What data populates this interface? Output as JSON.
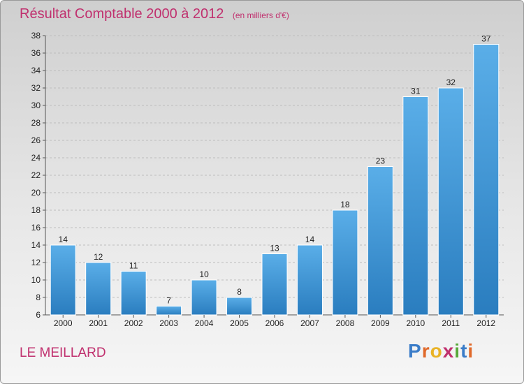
{
  "header": {
    "title": "Résultat Comptable 2000 à 2012",
    "unit": "(en milliers d'€)"
  },
  "footer": {
    "town": "LE MEILLARD",
    "logo": [
      "P",
      "r",
      "o",
      "x",
      "i",
      "t",
      "i"
    ]
  },
  "colors": {
    "title": "#c0306e",
    "bar_top": "#5aaee8",
    "bar_bottom": "#2a7dbf",
    "logo": [
      "#3a7cc8",
      "#e0692a",
      "#e9b326",
      "#c0306e",
      "#58a83a",
      "#3a7cc8",
      "#e0692a"
    ]
  },
  "chart_data": {
    "type": "bar",
    "categories": [
      "2000",
      "2001",
      "2002",
      "2003",
      "2004",
      "2005",
      "2006",
      "2007",
      "2008",
      "2009",
      "2010",
      "2011",
      "2012"
    ],
    "values": [
      14,
      12,
      11,
      7,
      10,
      8,
      13,
      14,
      18,
      23,
      31,
      32,
      37
    ],
    "ylim": [
      6,
      38
    ],
    "yticks": [
      6,
      8,
      10,
      12,
      14,
      16,
      18,
      20,
      22,
      24,
      26,
      28,
      30,
      32,
      34,
      36,
      38
    ],
    "xlabel": "",
    "ylabel": "",
    "grid": true,
    "data_labels": true
  }
}
